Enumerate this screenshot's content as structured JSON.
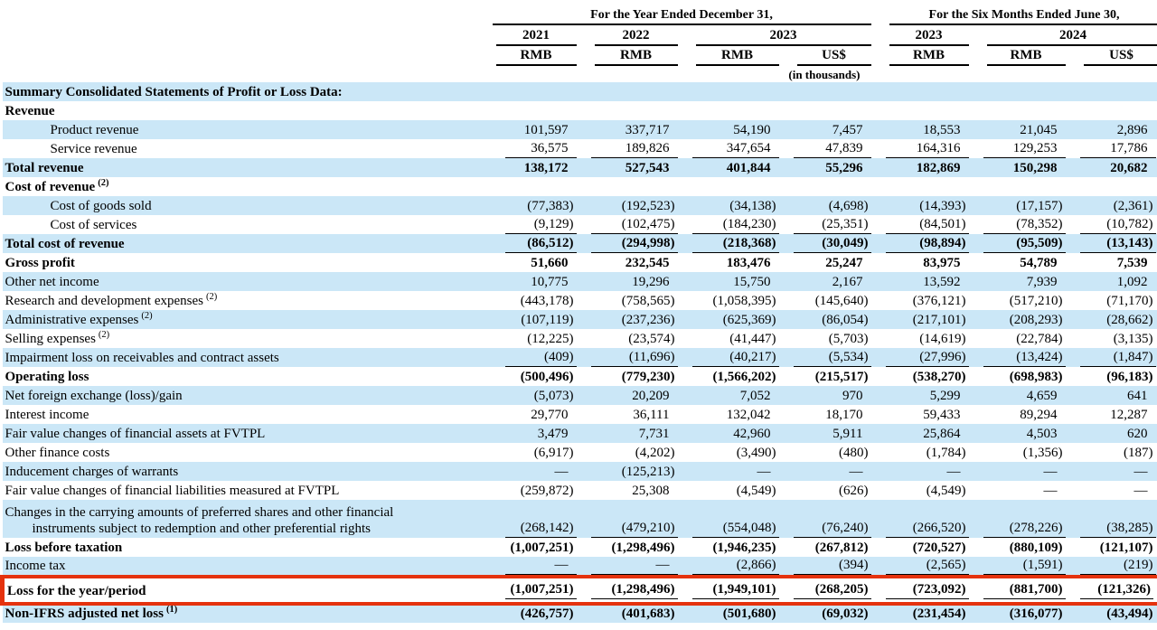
{
  "colors": {
    "stripe": "#cbe7f7",
    "highlight_border": "#e5320e",
    "text": "#000000"
  },
  "table": {
    "col_groups": [
      {
        "label": "For the Year Ended December 31,",
        "span": 4
      },
      {
        "label": "For the Six Months Ended June 30,",
        "span": 3
      }
    ],
    "year_headers": [
      {
        "label": "2021",
        "span": 1
      },
      {
        "label": "2022",
        "span": 1
      },
      {
        "label": "2023",
        "span": 2
      },
      {
        "label": "2023",
        "span": 1
      },
      {
        "label": "2024",
        "span": 2
      }
    ],
    "currency_headers": [
      "RMB",
      "RMB",
      "RMB",
      "US$",
      "RMB",
      "RMB",
      "US$"
    ],
    "units_note": "(in thousands)",
    "rows": [
      {
        "label": "Summary Consolidated Statements of Profit or Loss Data:",
        "bold": true,
        "shaded": true,
        "values": [
          "",
          "",
          "",
          "",
          "",
          "",
          ""
        ]
      },
      {
        "label": "Revenue",
        "bold": true,
        "values": [
          "",
          "",
          "",
          "",
          "",
          "",
          ""
        ]
      },
      {
        "label": "Product revenue",
        "indent": true,
        "shaded": true,
        "values": [
          "101,597",
          "337,717",
          "54,190",
          "7,457",
          "18,553",
          "21,045",
          "2,896"
        ]
      },
      {
        "label": "Service revenue",
        "indent": true,
        "underline": true,
        "values": [
          "36,575",
          "189,826",
          "347,654",
          "47,839",
          "164,316",
          "129,253",
          "17,786"
        ]
      },
      {
        "label": "Total revenue",
        "bold": true,
        "shaded": true,
        "values": [
          "138,172",
          "527,543",
          "401,844",
          "55,296",
          "182,869",
          "150,298",
          "20,682"
        ]
      },
      {
        "label": "Cost of revenue",
        "sup": "(2)",
        "bold": true,
        "values": [
          "",
          "",
          "",
          "",
          "",
          "",
          ""
        ]
      },
      {
        "label": "Cost of goods sold",
        "indent": true,
        "shaded": true,
        "values": [
          "(77,383)",
          "(192,523)",
          "(34,138)",
          "(4,698)",
          "(14,393)",
          "(17,157)",
          "(2,361)"
        ]
      },
      {
        "label": "Cost of services",
        "indent": true,
        "underline": true,
        "values": [
          "(9,129)",
          "(102,475)",
          "(184,230)",
          "(25,351)",
          "(84,501)",
          "(78,352)",
          "(10,782)"
        ]
      },
      {
        "label": "Total cost of revenue",
        "bold": true,
        "shaded": true,
        "underline": true,
        "values": [
          "(86,512)",
          "(294,998)",
          "(218,368)",
          "(30,049)",
          "(98,894)",
          "(95,509)",
          "(13,143)"
        ]
      },
      {
        "label": "Gross profit",
        "bold": true,
        "values": [
          "51,660",
          "232,545",
          "183,476",
          "25,247",
          "83,975",
          "54,789",
          "7,539"
        ]
      },
      {
        "label": "Other net income",
        "shaded": true,
        "values": [
          "10,775",
          "19,296",
          "15,750",
          "2,167",
          "13,592",
          "7,939",
          "1,092"
        ]
      },
      {
        "label": "Research and development expenses",
        "sup": "(2)",
        "values": [
          "(443,178)",
          "(758,565)",
          "(1,058,395)",
          "(145,640)",
          "(376,121)",
          "(517,210)",
          "(71,170)"
        ]
      },
      {
        "label": "Administrative expenses",
        "sup": "(2)",
        "shaded": true,
        "values": [
          "(107,119)",
          "(237,236)",
          "(625,369)",
          "(86,054)",
          "(217,101)",
          "(208,293)",
          "(28,662)"
        ]
      },
      {
        "label": "Selling expenses",
        "sup": "(2)",
        "values": [
          "(12,225)",
          "(23,574)",
          "(41,447)",
          "(5,703)",
          "(14,619)",
          "(22,784)",
          "(3,135)"
        ]
      },
      {
        "label": "Impairment loss on receivables and contract assets",
        "shaded": true,
        "underline": true,
        "values": [
          "(409)",
          "(11,696)",
          "(40,217)",
          "(5,534)",
          "(27,996)",
          "(13,424)",
          "(1,847)"
        ]
      },
      {
        "label": "Operating loss",
        "bold": true,
        "values": [
          "(500,496)",
          "(779,230)",
          "(1,566,202)",
          "(215,517)",
          "(538,270)",
          "(698,983)",
          "(96,183)"
        ]
      },
      {
        "label": "Net foreign exchange (loss)/gain",
        "shaded": true,
        "values": [
          "(5,073)",
          "20,209",
          "7,052",
          "970",
          "5,299",
          "4,659",
          "641"
        ]
      },
      {
        "label": "Interest income",
        "values": [
          "29,770",
          "36,111",
          "132,042",
          "18,170",
          "59,433",
          "89,294",
          "12,287"
        ]
      },
      {
        "label": "Fair value changes of financial assets at FVTPL",
        "shaded": true,
        "values": [
          "3,479",
          "7,731",
          "42,960",
          "5,911",
          "25,864",
          "4,503",
          "620"
        ]
      },
      {
        "label": "Other finance costs",
        "values": [
          "(6,917)",
          "(4,202)",
          "(3,490)",
          "(480)",
          "(1,784)",
          "(1,356)",
          "(187)"
        ]
      },
      {
        "label": "Inducement charges of warrants",
        "shaded": true,
        "values": [
          "—",
          "(125,213)",
          "—",
          "—",
          "—",
          "—",
          "—"
        ]
      },
      {
        "label": "Fair value changes of financial liabilities measured at FVTPL",
        "values": [
          "(259,872)",
          "25,308",
          "(4,549)",
          "(626)",
          "(4,549)",
          "—",
          "—"
        ]
      },
      {
        "label": "Changes in the carrying amounts of preferred shares and other financial",
        "label2": "instruments subject to redemption and other preferential rights",
        "shaded": true,
        "underline": true,
        "tall": true,
        "values": [
          "(268,142)",
          "(479,210)",
          "(554,048)",
          "(76,240)",
          "(266,520)",
          "(278,226)",
          "(38,285)"
        ]
      },
      {
        "label": "Loss before taxation",
        "bold": true,
        "values": [
          "(1,007,251)",
          "(1,298,496)",
          "(1,946,235)",
          "(267,812)",
          "(720,527)",
          "(880,109)",
          "(121,107)"
        ]
      },
      {
        "label": "Income tax",
        "shaded": true,
        "underline": true,
        "values": [
          "—",
          "—",
          "(2,866)",
          "(394)",
          "(2,565)",
          "(1,591)",
          "(219)"
        ]
      },
      {
        "label": "Loss for the year/period",
        "bold": true,
        "underline": true,
        "highlight": true,
        "values": [
          "(1,007,251)",
          "(1,298,496)",
          "(1,949,101)",
          "(268,205)",
          "(723,092)",
          "(881,700)",
          "(121,326)"
        ]
      },
      {
        "label": "Non-IFRS adjusted net loss",
        "sup": "(1)",
        "bold": true,
        "shaded": true,
        "values": [
          "(426,757)",
          "(401,683)",
          "(501,680)",
          "(69,032)",
          "(231,454)",
          "(316,077)",
          "(43,494)"
        ]
      }
    ]
  }
}
